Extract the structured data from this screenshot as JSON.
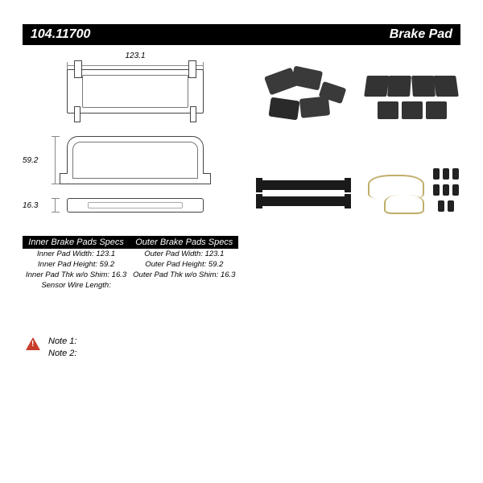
{
  "header": {
    "part_number": "104.11700",
    "product_type": "Brake Pad"
  },
  "dimensions": {
    "width_label": "123.1",
    "height_label": "59.2",
    "thickness_label": "16.3"
  },
  "specs_table": {
    "inner_header": "Inner Brake Pads Specs",
    "outer_header": "Outer Brake Pads Specs",
    "rows": [
      {
        "inner": "Inner Pad Width: 123.1",
        "outer": "Outer Pad Width: 123.1"
      },
      {
        "inner": "Inner Pad Height: 59.2",
        "outer": "Outer Pad Height: 59.2"
      },
      {
        "inner": "Inner Pad Thk w/o Shim: 16.3",
        "outer": "Outer Pad Thk w/o Shim: 16.3"
      },
      {
        "inner": "Sensor Wire Length:",
        "outer": ""
      }
    ]
  },
  "thumbnails": {
    "alt1": "brake-pad-set-angled",
    "alt2": "brake-pad-set-side",
    "alt3": "brake-pad-edge-view",
    "alt4": "hardware-kit"
  },
  "notes": {
    "line1": "Note 1:",
    "line2": "Note 2:"
  },
  "colors": {
    "header_bg": "#000000",
    "header_fg": "#ffffff",
    "warn": "#c83c28",
    "line": "#888888",
    "pad_dark": "#333333",
    "hardware_wire": "#bfae6a"
  },
  "layout": {
    "diagram_type": "technical-drawing",
    "thumb_grid": "2x2"
  }
}
